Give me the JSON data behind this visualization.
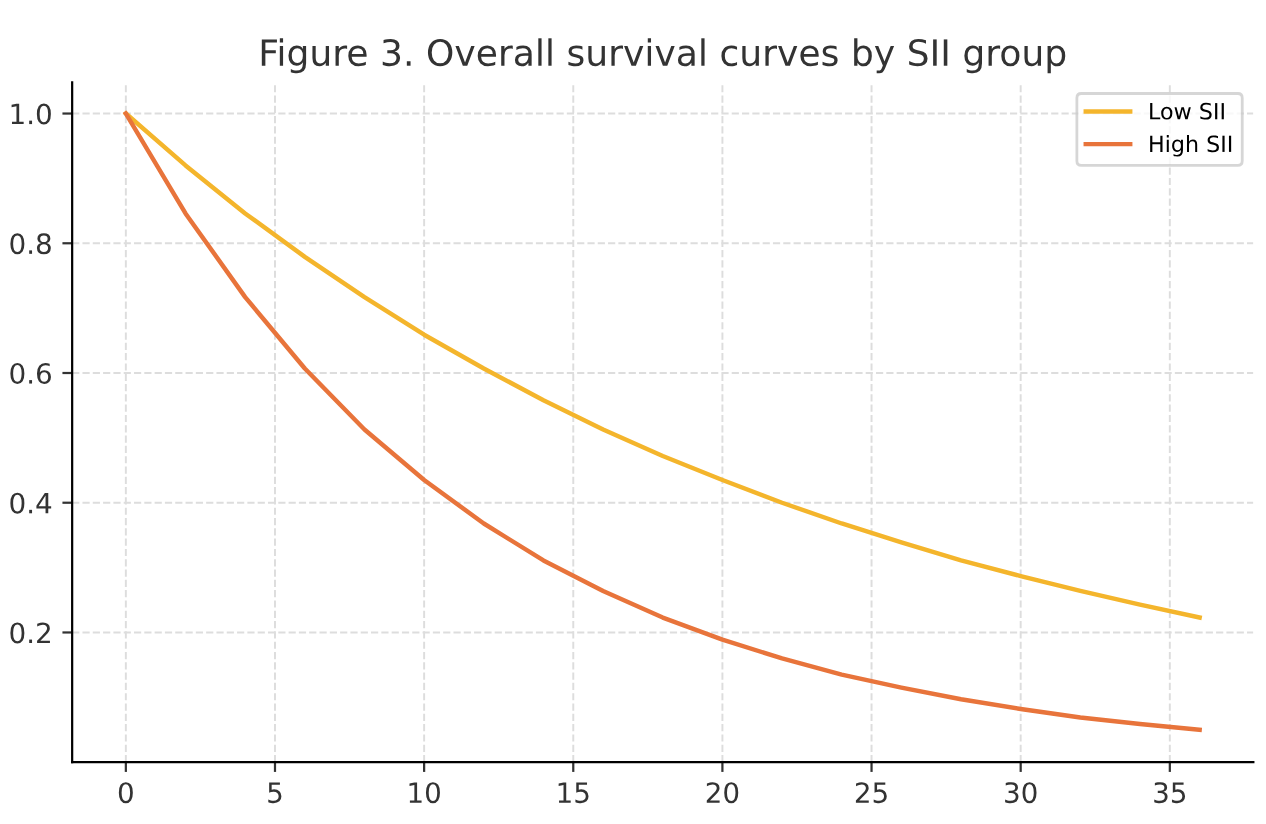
{
  "chart_data": {
    "type": "line",
    "title": "Figure 3. Overall survival curves by SII group",
    "x": [
      0,
      2,
      4,
      6,
      8,
      10,
      12,
      14,
      16,
      18,
      20,
      22,
      24,
      26,
      28,
      30,
      32,
      34,
      36
    ],
    "series": [
      {
        "name": "Low SII",
        "color": "#f4b52c",
        "values": [
          1.0,
          0.92,
          0.846,
          0.779,
          0.717,
          0.659,
          0.607,
          0.558,
          0.513,
          0.472,
          0.435,
          0.4,
          0.368,
          0.339,
          0.311,
          0.287,
          0.264,
          0.243,
          0.223
        ]
      },
      {
        "name": "High SII",
        "color": "#e8743b",
        "values": [
          1.0,
          0.846,
          0.717,
          0.607,
          0.513,
          0.435,
          0.368,
          0.311,
          0.264,
          0.223,
          0.189,
          0.16,
          0.135,
          0.115,
          0.097,
          0.082,
          0.069,
          0.059,
          0.05
        ]
      }
    ],
    "xlim": [
      -1.8,
      37.8
    ],
    "ylim": [
      0.0,
      1.048
    ],
    "xticks": [
      0,
      5,
      10,
      15,
      20,
      25,
      30,
      35
    ],
    "yticks": [
      0.2,
      0.4,
      0.6,
      0.8,
      {
        "value": 1,
        "label": "1.0"
      }
    ],
    "grid": true,
    "legend": "top right",
    "line_style": "solid",
    "marker": "none"
  }
}
